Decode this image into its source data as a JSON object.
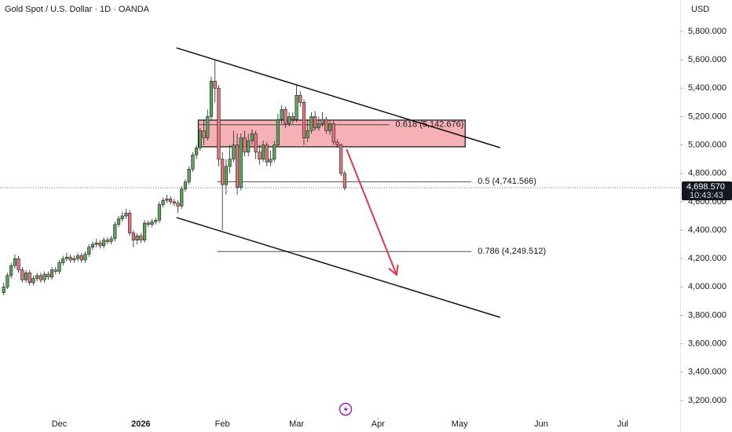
{
  "chart_data": {
    "type": "candlestick",
    "title": "Gold Spot / U.S. Dollar · 1D · OANDA",
    "currency": "USD",
    "x": [
      -15,
      -14,
      -13,
      -12,
      -11,
      -10,
      -9,
      -8,
      -7,
      -6,
      -5,
      -4,
      -3,
      -2,
      -1,
      0,
      1,
      2,
      3,
      4,
      5,
      6,
      7,
      8,
      9,
      10,
      11,
      12,
      13,
      14,
      15,
      16,
      17,
      18,
      19,
      20,
      21,
      22,
      23,
      24,
      25,
      26,
      27,
      28,
      29,
      30,
      31,
      32,
      33,
      34,
      35,
      36,
      37,
      38,
      39,
      40,
      41,
      42,
      43,
      44,
      45,
      46,
      47,
      48,
      49,
      50,
      51,
      52,
      53,
      54,
      55,
      56,
      57,
      58,
      59,
      60,
      61,
      62,
      63,
      64,
      65,
      66,
      67,
      68,
      69,
      70,
      71,
      72,
      73,
      74,
      75,
      76,
      77
    ],
    "open": [
      3960,
      4000,
      4080,
      4150,
      4200,
      4120,
      4050,
      4100,
      4030,
      4060,
      4080,
      4050,
      4090,
      4070,
      4120,
      4110,
      4170,
      4200,
      4210,
      4190,
      4200,
      4220,
      4190,
      4230,
      4280,
      4300,
      4310,
      4290,
      4330,
      4320,
      4340,
      4440,
      4480,
      4500,
      4520,
      4380,
      4330,
      4360,
      4330,
      4450,
      4440,
      4460,
      4470,
      4580,
      4610,
      4620,
      4600,
      4590,
      4570,
      4690,
      4740,
      4830,
      4930,
      4980,
      5100,
      5050,
      5200,
      5450,
      5400,
      4900,
      4720,
      4850,
      4900,
      5000,
      4700,
      5050,
      4950,
      5030,
      5080,
      4950,
      4900,
      5000,
      4880,
      4900,
      5000,
      5180,
      5250,
      5150,
      5200,
      5180,
      5350,
      5300,
      5050,
      5100,
      5200,
      5120,
      5150,
      5180,
      5100,
      5150,
      5020,
      5000,
      4800
    ],
    "high": [
      4030,
      4100,
      4170,
      4230,
      4220,
      4140,
      4120,
      4120,
      4080,
      4100,
      4100,
      4110,
      4110,
      4140,
      4140,
      4190,
      4220,
      4240,
      4230,
      4220,
      4240,
      4240,
      4250,
      4300,
      4320,
      4340,
      4330,
      4350,
      4350,
      4360,
      4460,
      4500,
      4530,
      4550,
      4540,
      4400,
      4380,
      4380,
      4470,
      4470,
      4480,
      4490,
      4600,
      4630,
      4650,
      4640,
      4620,
      4610,
      4710,
      4760,
      4850,
      4950,
      5000,
      5120,
      5180,
      5250,
      5480,
      5600,
      5420,
      4950,
      4900,
      5000,
      5100,
      5080,
      5080,
      5100,
      5080,
      5110,
      5100,
      5000,
      5030,
      5020,
      4960,
      5030,
      5220,
      5280,
      5270,
      5230,
      5230,
      5420,
      5380,
      5320,
      5180,
      5230,
      5240,
      5200,
      5230,
      5200,
      5170,
      5170,
      5040,
      5010,
      4820
    ],
    "low": [
      3940,
      3985,
      4060,
      4130,
      4100,
      4030,
      4030,
      4010,
      4010,
      4040,
      4030,
      4030,
      4050,
      4050,
      4090,
      4090,
      4150,
      4180,
      4170,
      4170,
      4180,
      4170,
      4170,
      4210,
      4260,
      4280,
      4270,
      4270,
      4300,
      4300,
      4320,
      4420,
      4460,
      4480,
      4360,
      4280,
      4300,
      4310,
      4310,
      4420,
      4420,
      4440,
      4450,
      4560,
      4590,
      4580,
      4570,
      4520,
      4550,
      4670,
      4720,
      4810,
      4900,
      4960,
      5000,
      5030,
      5180,
      5300,
      4850,
      4400,
      4650,
      4800,
      4880,
      4650,
      4680,
      4920,
      4920,
      5000,
      4900,
      4860,
      4880,
      4850,
      4850,
      4880,
      4990,
      5150,
      5120,
      5130,
      5150,
      5160,
      5270,
      5000,
      5020,
      5080,
      5100,
      5100,
      5130,
      5080,
      5070,
      5000,
      4980,
      4780,
      4680
    ],
    "close": [
      4000,
      4080,
      4150,
      4200,
      4120,
      4050,
      4100,
      4030,
      4060,
      4080,
      4050,
      4090,
      4070,
      4120,
      4110,
      4170,
      4200,
      4210,
      4190,
      4200,
      4220,
      4190,
      4230,
      4280,
      4300,
      4310,
      4290,
      4330,
      4320,
      4340,
      4440,
      4480,
      4500,
      4520,
      4380,
      4330,
      4360,
      4330,
      4450,
      4440,
      4460,
      4470,
      4580,
      4610,
      4620,
      4600,
      4590,
      4570,
      4690,
      4740,
      4830,
      4930,
      4980,
      5100,
      5050,
      5200,
      5450,
      5400,
      4900,
      4720,
      4850,
      4900,
      5000,
      4700,
      5050,
      4950,
      5030,
      5080,
      4950,
      4900,
      5000,
      4880,
      4900,
      5000,
      5180,
      5250,
      5150,
      5200,
      5180,
      5350,
      5300,
      5050,
      5100,
      5200,
      5120,
      5150,
      5180,
      5100,
      5150,
      5020,
      5000,
      4800,
      4698.57
    ],
    "up_color": "#5aa55a",
    "down_color": "#e4737c",
    "xlim": [
      -16,
      167.5
    ],
    "xticks": [
      {
        "value": 0,
        "label": "Dec"
      },
      {
        "value": 22,
        "label": "2026"
      },
      {
        "value": 44,
        "label": "Feb"
      },
      {
        "value": 64,
        "label": "Mar"
      },
      {
        "value": 86,
        "label": "Apr"
      },
      {
        "value": 108,
        "label": "May"
      },
      {
        "value": 130,
        "label": "Jun"
      },
      {
        "value": 152,
        "label": "Jul"
      }
    ],
    "ylim": [
      3078,
      6021
    ],
    "yticks": [
      {
        "value": 3200,
        "label": "3,200.000"
      },
      {
        "value": 3400,
        "label": "3,400.000"
      },
      {
        "value": 3600,
        "label": "3,600.000"
      },
      {
        "value": 3800,
        "label": "3,800.000"
      },
      {
        "value": 4000,
        "label": "4,000.000"
      },
      {
        "value": 4200,
        "label": "4,200.000"
      },
      {
        "value": 4400,
        "label": "4,400.000"
      },
      {
        "value": 4600,
        "label": "4,600.000"
      },
      {
        "value": 4800,
        "label": "4,800.000"
      },
      {
        "value": 5000,
        "label": "5,000.000"
      },
      {
        "value": 5200,
        "label": "5,200.000"
      },
      {
        "value": 5400,
        "label": "5,400.000"
      },
      {
        "value": 5600,
        "label": "5,600.000"
      },
      {
        "value": 5800,
        "label": "5,800.000"
      }
    ],
    "current_price": {
      "value": 4698.57,
      "label": "4,698.570",
      "time": "10:43:43"
    },
    "zone": {
      "x": [
        37.5,
        109.5
      ],
      "y": [
        5175,
        4987
      ],
      "color": "#f4a3aa"
    },
    "trendlines": [
      {
        "x": [
          31.6,
          118.9
        ],
        "y": [
          5684,
          4981
        ]
      },
      {
        "x": [
          31.6,
          118.9
        ],
        "y": [
          4489,
          3786
        ]
      }
    ],
    "arrow": {
      "x": [
        77.5,
        91
      ],
      "y": [
        4970,
        4085
      ],
      "color": "#e0394e"
    },
    "fib_levels": [
      {
        "value": 5142.676,
        "label": "0.618 (5,142.676)",
        "x": [
          37.5,
          89
        ]
      },
      {
        "value": 4741.566,
        "label": "0.5 (4,741.566)",
        "x": [
          42.6,
          111.2
        ]
      },
      {
        "value": 4249.512,
        "label": "0.786 (4,249.512)",
        "x": [
          42.6,
          111.2
        ]
      }
    ]
  }
}
